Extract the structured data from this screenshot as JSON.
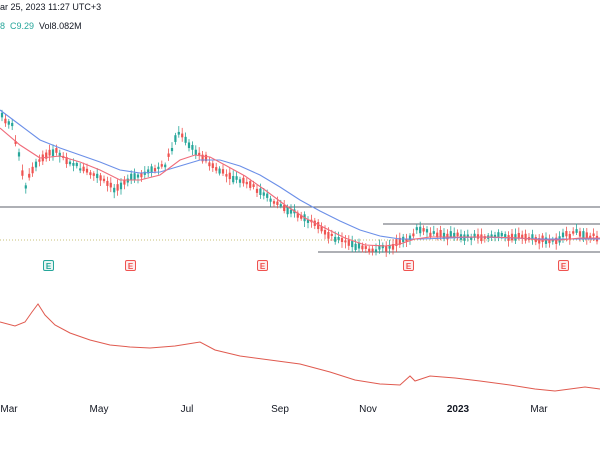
{
  "header": {
    "line1": "ar 25, 2023 11:27 UTC+3",
    "close_value": "C9.29",
    "volume": "Vol8.082M",
    "partial_symbol": "8"
  },
  "earnings_markers": [
    {
      "label": "E",
      "type": "past"
    },
    {
      "label": "E",
      "type": "miss"
    },
    {
      "label": "E",
      "type": "miss"
    },
    {
      "label": "E",
      "type": "miss"
    },
    {
      "label": "E",
      "type": "miss"
    }
  ],
  "x_axis_labels": [
    "Mar",
    "May",
    "Jul",
    "Sep",
    "Nov",
    "2023",
    "Mar"
  ],
  "colors": {
    "ema_fast": "#f06b7a",
    "ema_slow": "#6b8fe8",
    "candle_up": "#26a69a",
    "candle_down": "#ef5350",
    "indicator_line": "#e05a4f",
    "horizontal_line": "#5d606b",
    "dotted_level": "#c9c27a"
  },
  "chart_data": {
    "type": "candlestick",
    "x_axis": [
      "Mar",
      "May",
      "Jul",
      "Sep",
      "Nov",
      "2023",
      "Mar"
    ],
    "note_series": "price trend with two moving averages and a lower indicator pane"
  }
}
